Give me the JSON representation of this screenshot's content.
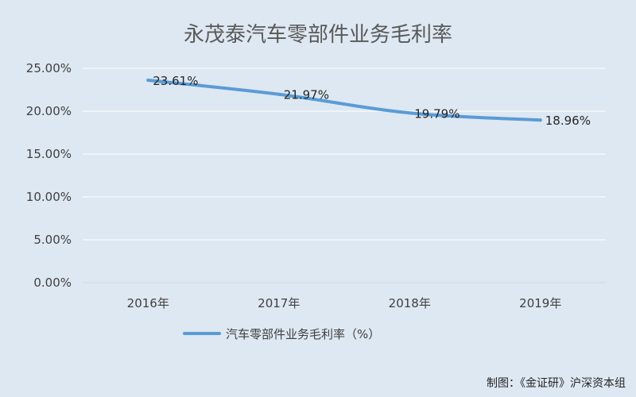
{
  "chart_data": {
    "type": "line",
    "title": "永茂泰汽车零部件业务毛利率",
    "categories": [
      "2016年",
      "2017年",
      "2018年",
      "2019年"
    ],
    "series": [
      {
        "name": "汽车零部件业务毛利率（%）",
        "values": [
          23.61,
          21.97,
          19.79,
          18.96
        ],
        "labels": [
          "23.61%",
          "21.97%",
          "19.79%",
          "18.96%"
        ],
        "color": "#5b9bd5"
      }
    ],
    "y_ticks": [
      "0.00%",
      "5.00%",
      "10.00%",
      "15.00%",
      "20.00%",
      "25.00%"
    ],
    "ylim": [
      0,
      25
    ],
    "grid": true,
    "legend_position": "bottom"
  },
  "source_note": "制图：《金证研》沪深资本组",
  "colors": {
    "background": "#dde8f2",
    "gridline": "#ffffff",
    "line": "#5b9bd5"
  }
}
